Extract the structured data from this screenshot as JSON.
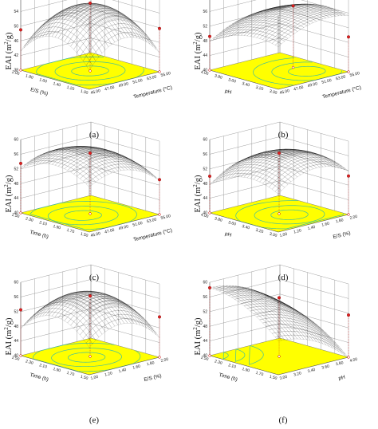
{
  "figure": {
    "z_label_main": "EAI (m",
    "z_label_sup": "2",
    "z_label_end": "/g)"
  },
  "chart_data": [
    {
      "panel": "(a)",
      "type": "surface",
      "x_label": "Temperature (°C)",
      "y_label": "E/S (%)",
      "z_label": "EAI (m2/g)",
      "x_ticks": [
        "45.00",
        "47.00",
        "49.00",
        "51.00",
        "53.00",
        "55.00"
      ],
      "y_ticks": [
        "1.00",
        "1.20",
        "1.40",
        "1.60",
        "1.80",
        "2.00"
      ],
      "z_ticks": [
        "38",
        "42",
        "46",
        "50",
        "54",
        "58"
      ],
      "x_range": [
        45,
        55
      ],
      "y_range": [
        1.0,
        2.0
      ],
      "z_range": [
        38,
        58
      ],
      "surface": {
        "center": [
          50,
          1.5
        ],
        "peak": 56,
        "curv_x": 0.55,
        "curv_y": 0.55,
        "corner_dip": 14
      },
      "points": [
        [
          50,
          1.5,
          56.5
        ],
        [
          55,
          1.0,
          49.8
        ],
        [
          45,
          2.0,
          49.0
        ]
      ]
    },
    {
      "panel": "(b)",
      "type": "surface",
      "x_label": "Temperature (°C)",
      "y_label": "pH",
      "z_label": "EAI (m2/g)",
      "x_ticks": [
        "45.00",
        "47.00",
        "49.00",
        "51.00",
        "53.00",
        "55.00"
      ],
      "y_ticks": [
        "3.00",
        "3.20",
        "3.40",
        "3.60",
        "3.80",
        "4.00"
      ],
      "z_ticks": [
        "40",
        "44",
        "48",
        "52",
        "56",
        "60"
      ],
      "x_range": [
        45,
        55
      ],
      "y_range": [
        3.0,
        4.0
      ],
      "z_range": [
        40,
        60
      ],
      "surface": {
        "center": [
          52,
          3.3
        ],
        "peak": 57,
        "curv_x": 0.35,
        "curv_y": 0.35,
        "corner_dip": 8
      },
      "points": [
        [
          45,
          4.0,
          49.2
        ],
        [
          55,
          3.0,
          49.5
        ],
        [
          52,
          3.5,
          56.8
        ]
      ]
    },
    {
      "panel": "(c)",
      "type": "surface",
      "x_label": "Temperature (°C)",
      "y_label": "Time (h)",
      "z_label": "EAI (m2/g)",
      "x_ticks": [
        "45.00",
        "47.00",
        "49.00",
        "51.00",
        "53.00",
        "55.00"
      ],
      "y_ticks": [
        "1.50",
        "1.70",
        "1.90",
        "2.10",
        "2.30",
        "2.50"
      ],
      "z_ticks": [
        "40",
        "44",
        "48",
        "52",
        "56",
        "60"
      ],
      "x_range": [
        45,
        55
      ],
      "y_range": [
        1.5,
        2.5
      ],
      "z_range": [
        40,
        60
      ],
      "surface": {
        "center": [
          49,
          2.0
        ],
        "peak": 58,
        "curv_x": 0.45,
        "curv_y": 0.4,
        "corner_dip": 10
      },
      "points": [
        [
          45,
          2.5,
          53.5
        ],
        [
          50,
          2.0,
          56.5
        ],
        [
          55,
          1.5,
          49.5
        ]
      ]
    },
    {
      "panel": "(d)",
      "type": "surface",
      "x_label": "E/S (%)",
      "y_label": "pH",
      "z_label": "EAI (m2/g)",
      "x_ticks": [
        "1.00",
        "1.20",
        "1.40",
        "1.60",
        "1.80",
        "2.00"
      ],
      "y_ticks": [
        "3.00",
        "3.20",
        "3.40",
        "3.60",
        "3.80",
        "4.00"
      ],
      "z_ticks": [
        "40",
        "44",
        "48",
        "52",
        "56",
        "60"
      ],
      "x_range": [
        1.0,
        2.0
      ],
      "y_range": [
        3.0,
        4.0
      ],
      "z_range": [
        40,
        60
      ],
      "surface": {
        "center": [
          1.55,
          3.4
        ],
        "peak": 57,
        "curv_x": 0.45,
        "curv_y": 0.4,
        "corner_dip": 10
      },
      "points": [
        [
          1.0,
          4.0,
          50.0
        ],
        [
          1.5,
          3.5,
          56.5
        ],
        [
          2.0,
          3.0,
          50.5
        ]
      ]
    },
    {
      "panel": "(e)",
      "type": "surface",
      "x_label": "E/S (%)",
      "y_label": "Time (h)",
      "z_label": "EAI (m2/g)",
      "x_ticks": [
        "1.00",
        "1.20",
        "1.40",
        "1.60",
        "1.80",
        "2.00"
      ],
      "y_ticks": [
        "1.50",
        "1.70",
        "1.90",
        "2.10",
        "2.30",
        "2.50"
      ],
      "z_ticks": [
        "40",
        "44",
        "48",
        "52",
        "56",
        "60"
      ],
      "x_range": [
        1.0,
        2.0
      ],
      "y_range": [
        1.5,
        2.5
      ],
      "z_range": [
        40,
        60
      ],
      "surface": {
        "center": [
          1.45,
          2.0
        ],
        "peak": 57.5,
        "curv_x": 0.45,
        "curv_y": 0.5,
        "corner_dip": 14
      },
      "points": [
        [
          1.0,
          2.5,
          52.5
        ],
        [
          1.5,
          2.0,
          56.5
        ],
        [
          2.0,
          1.5,
          51.0
        ]
      ]
    },
    {
      "panel": "(f)",
      "type": "surface",
      "x_label": "pH",
      "y_label": "Time (h)",
      "z_label": "EAI (m2/g)",
      "x_ticks": [
        "3.00",
        "3.20",
        "3.40",
        "3.60",
        "3.80",
        "4.00"
      ],
      "y_ticks": [
        "1.50",
        "1.70",
        "1.90",
        "2.10",
        "2.30",
        "2.50"
      ],
      "z_ticks": [
        "40",
        "44",
        "48",
        "52",
        "56",
        "60"
      ],
      "x_range": [
        3.0,
        4.0
      ],
      "y_range": [
        1.5,
        2.5
      ],
      "z_range": [
        40,
        60
      ],
      "surface": {
        "center": [
          3.0,
          2.5
        ],
        "peak": 58.5,
        "curv_x": 0.35,
        "curv_y": 0.35,
        "corner_dip": 8
      },
      "points": [
        [
          3.0,
          2.5,
          58.5
        ],
        [
          3.5,
          2.0,
          56.0
        ],
        [
          4.0,
          1.5,
          51.5
        ]
      ]
    }
  ]
}
